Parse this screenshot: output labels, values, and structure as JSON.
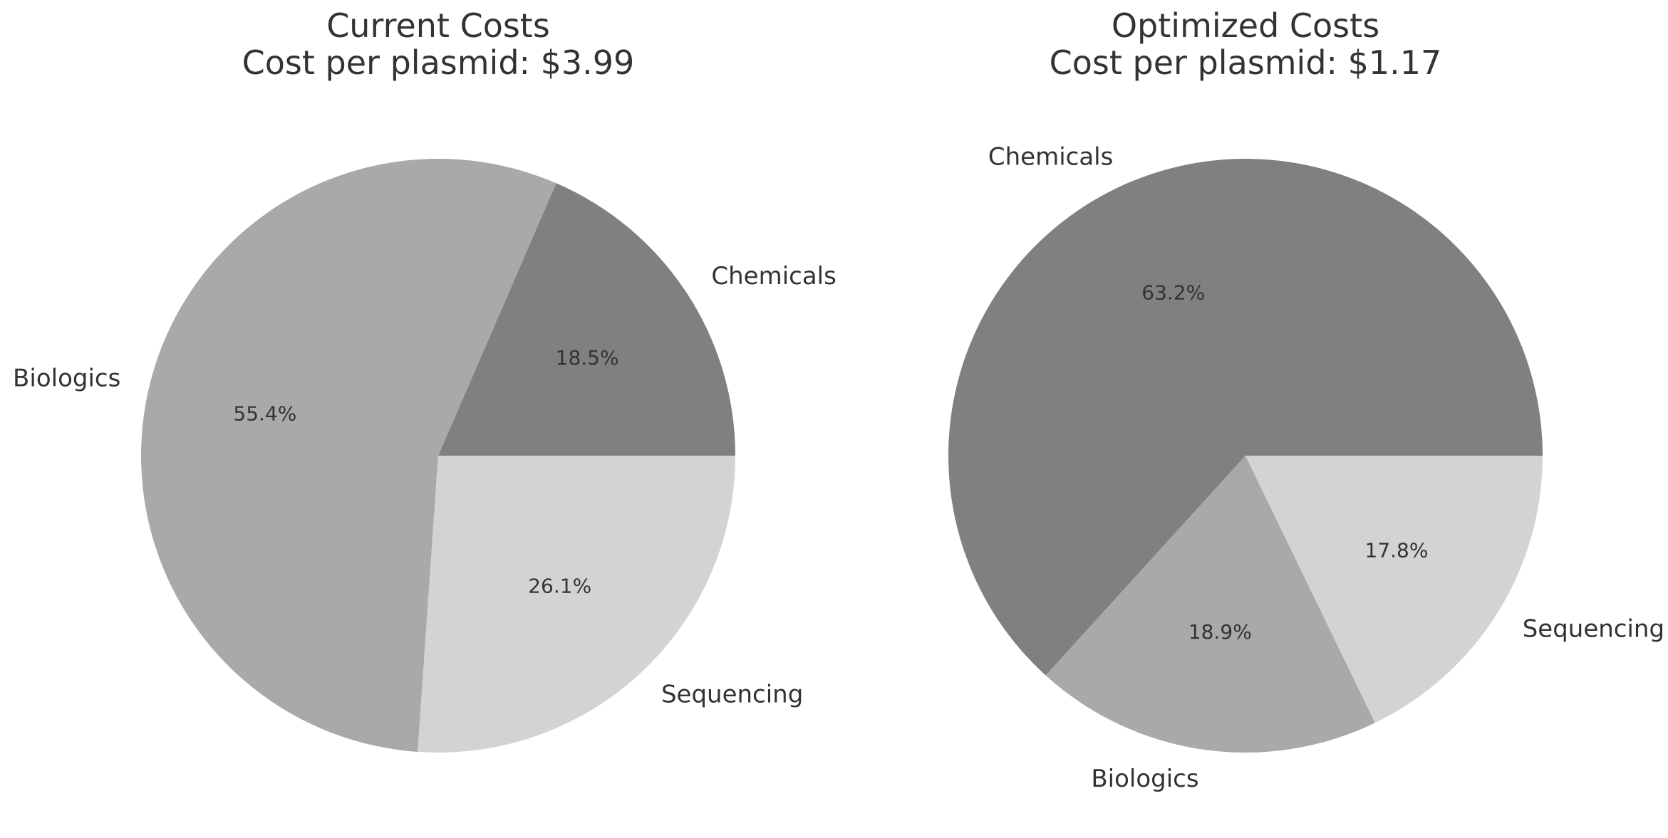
{
  "chart_data": [
    {
      "type": "pie",
      "title_line1": "Current Costs",
      "title_line2": "Cost per plasmid: $3.99",
      "start_angle": 0,
      "direction": "counterclockwise",
      "slices": [
        {
          "label": "Chemicals",
          "value": 18.5,
          "pct_label": "18.5%",
          "color": "#808080"
        },
        {
          "label": "Biologics",
          "value": 55.4,
          "pct_label": "55.4%",
          "color": "#a9a9a9"
        },
        {
          "label": "Sequencing",
          "value": 26.1,
          "pct_label": "26.1%",
          "color": "#d3d3d3"
        }
      ]
    },
    {
      "type": "pie",
      "title_line1": "Optimized Costs",
      "title_line2": "Cost per plasmid: $1.17",
      "start_angle": 0,
      "direction": "counterclockwise",
      "slices": [
        {
          "label": "Chemicals",
          "value": 63.2,
          "pct_label": "63.2%",
          "color": "#808080"
        },
        {
          "label": "Biologics",
          "value": 18.9,
          "pct_label": "18.9%",
          "color": "#a9a9a9"
        },
        {
          "label": "Sequencing",
          "value": 17.8,
          "pct_label": "17.8%",
          "color": "#d3d3d3"
        }
      ]
    }
  ]
}
